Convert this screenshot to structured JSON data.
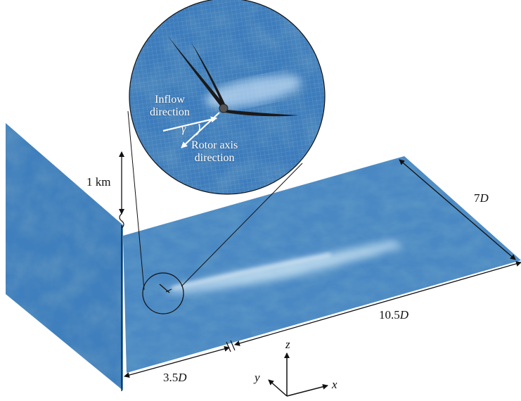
{
  "labels": {
    "height": "1 km",
    "width": "7",
    "width_unit": "D",
    "length": "10.5",
    "length_unit": "D",
    "upstream": "3.5",
    "upstream_unit": "D",
    "inflow_line1": "Inflow",
    "inflow_line2": "direction",
    "gamma": "γ",
    "rotor_line1": "Rotor axis",
    "rotor_line2": "direction"
  },
  "axes": {
    "x": "x",
    "y": "y",
    "z": "z"
  },
  "colors": {
    "field_dark": "#1d4f8c",
    "field_mid": "#3f7fbd",
    "field_light": "#8ec1e3",
    "wake": "#d6ecf8",
    "ink": "#111111"
  }
}
